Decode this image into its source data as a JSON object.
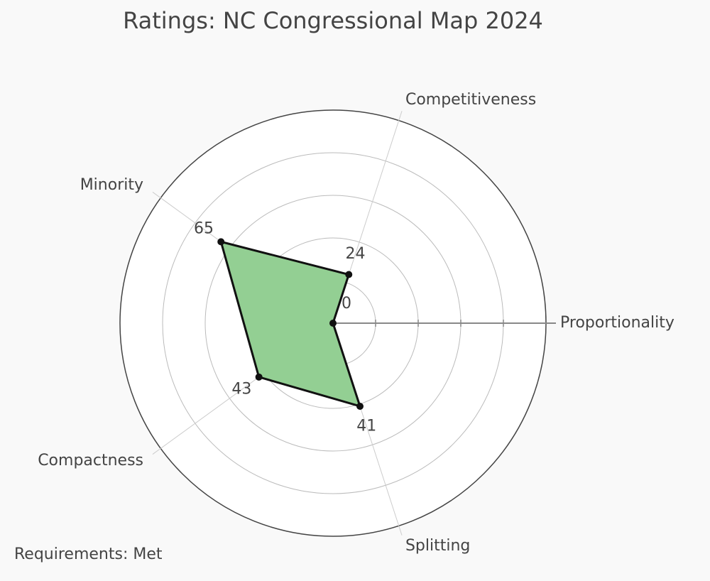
{
  "chart_data": {
    "type": "radar",
    "title": "Ratings: NC Congressional Map 2024",
    "categories": [
      "Proportionality",
      "Competitiveness",
      "Minority",
      "Compactness",
      "Splitting"
    ],
    "values": [
      0,
      24,
      65,
      43,
      41
    ],
    "color": "#93cf93",
    "line_color": "#111111",
    "rlim": [
      0,
      100
    ],
    "rticks": [
      20,
      40,
      60,
      80,
      100
    ],
    "grid": true,
    "annotation": "Requirements: Met"
  }
}
